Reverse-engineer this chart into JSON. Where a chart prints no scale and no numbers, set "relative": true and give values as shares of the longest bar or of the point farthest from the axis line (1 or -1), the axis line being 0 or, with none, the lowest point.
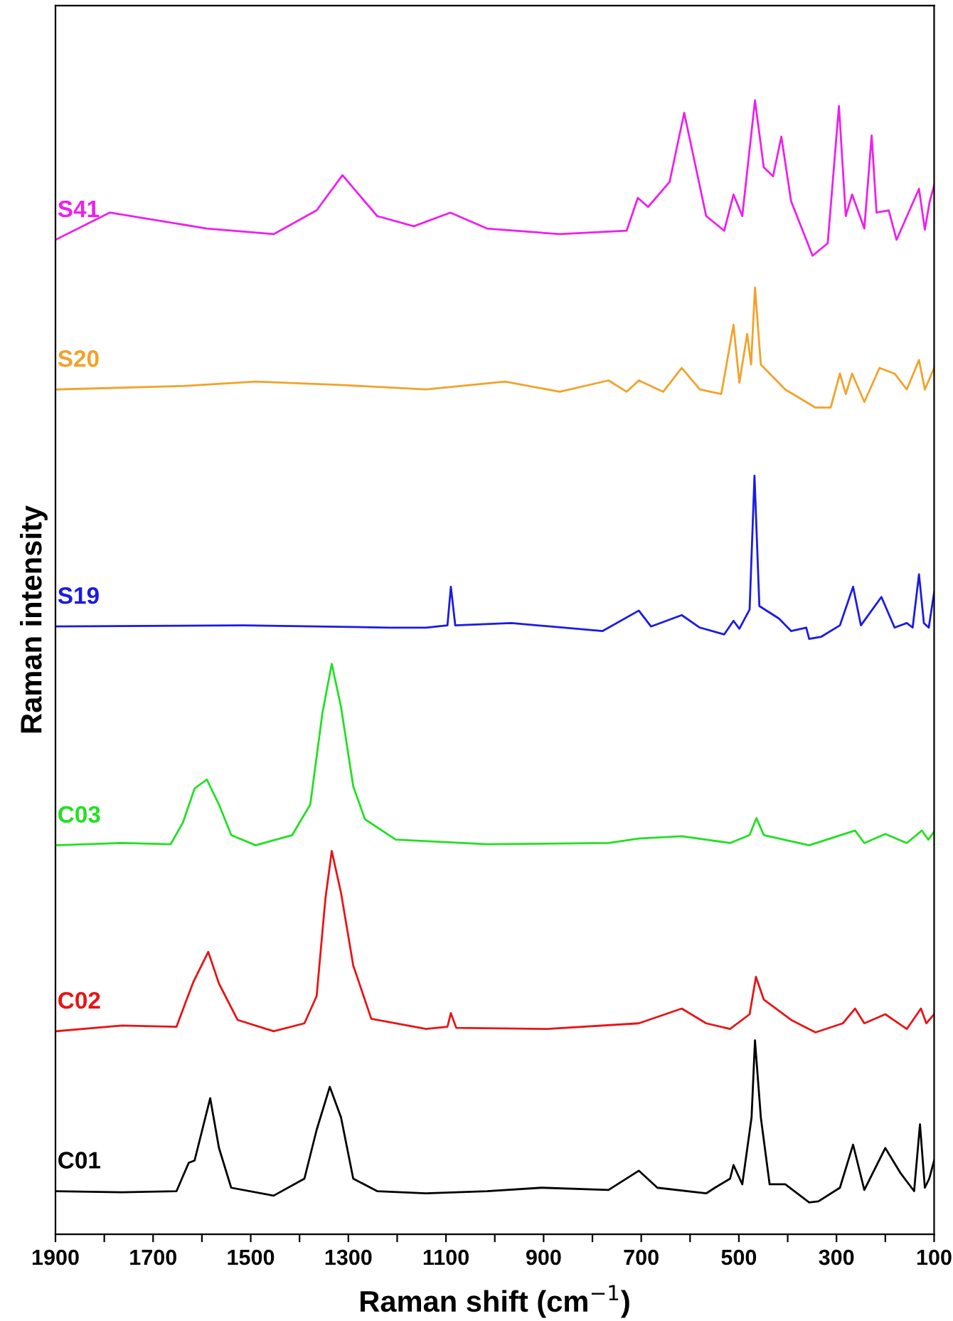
{
  "chart_data": {
    "type": "line",
    "xlabel": "Raman shift (cm$^{−1}$)",
    "ylabel": "Raman intensity",
    "relative": true,
    "xlim": [
      1900,
      100
    ],
    "xticks": [
      1900,
      {
        "value": 1800,
        "label": null
      },
      1700,
      {
        "value": 1600,
        "label": null
      },
      1500,
      {
        "value": 1400,
        "label": null
      },
      1300,
      {
        "value": 1200,
        "label": null
      },
      1100,
      {
        "value": 1000,
        "label": null
      },
      900,
      {
        "value": 800,
        "label": null
      },
      700,
      {
        "value": 600,
        "label": null
      },
      500,
      {
        "value": 400,
        "label": null
      },
      300,
      {
        "value": 200,
        "label": null
      },
      100
    ],
    "grid": false,
    "legend": false,
    "marker": "none",
    "line_style": "solid",
    "series": [
      {
        "name": "S41",
        "color": "#ee1fee",
        "x": [
          1900,
          1789,
          1590,
          1453,
          1365,
          1312,
          1241,
          1166,
          1091,
          1016,
          867,
          730,
          707,
          686,
          642,
          612,
          567,
          530,
          511,
          493,
          467,
          449,
          430,
          413,
          393,
          349,
          318,
          295,
          281,
          268,
          243,
          228,
          218,
          193,
          177,
          131,
          119,
          109,
          100
        ],
        "values": [
          0.877,
          0.901,
          0.887,
          0.882,
          0.903,
          0.934,
          0.898,
          0.889,
          0.901,
          0.887,
          0.882,
          0.885,
          0.914,
          0.906,
          0.928,
          0.989,
          0.898,
          0.885,
          0.917,
          0.898,
          1.0,
          0.941,
          0.933,
          0.968,
          0.911,
          0.863,
          0.874,
          0.995,
          0.898,
          0.917,
          0.887,
          0.969,
          0.901,
          0.903,
          0.877,
          0.922,
          0.886,
          0.911,
          0.925
        ]
      },
      {
        "name": "S20",
        "color": "#f2a22a",
        "x": [
          1900,
          1639,
          1490,
          1315,
          1141,
          979,
          867,
          767,
          730,
          705,
          655,
          617,
          580,
          536,
          511,
          499,
          483,
          475,
          467,
          455,
          405,
          343,
          312,
          293,
          281,
          268,
          243,
          212,
          181,
          156,
          131,
          119,
          100
        ],
        "values": [
          0.745,
          0.748,
          0.752,
          0.749,
          0.745,
          0.752,
          0.743,
          0.753,
          0.743,
          0.753,
          0.743,
          0.764,
          0.745,
          0.741,
          0.802,
          0.751,
          0.794,
          0.767,
          0.835,
          0.767,
          0.745,
          0.729,
          0.729,
          0.759,
          0.741,
          0.759,
          0.734,
          0.764,
          0.759,
          0.745,
          0.771,
          0.745,
          0.764
        ]
      },
      {
        "name": "S19",
        "color": "#1a1ae6",
        "x": [
          1900,
          1515,
          1216,
          1141,
          1097,
          1090,
          1081,
          966,
          779,
          705,
          680,
          617,
          580,
          530,
          511,
          499,
          478,
          468,
          458,
          418,
          393,
          362,
          356,
          331,
          293,
          266,
          250,
          208,
          181,
          156,
          144,
          131,
          121,
          111,
          100
        ],
        "values": [
          0.536,
          0.537,
          0.535,
          0.535,
          0.537,
          0.571,
          0.537,
          0.539,
          0.532,
          0.55,
          0.536,
          0.546,
          0.535,
          0.529,
          0.541,
          0.534,
          0.551,
          0.669,
          0.554,
          0.543,
          0.532,
          0.535,
          0.525,
          0.527,
          0.537,
          0.571,
          0.537,
          0.562,
          0.535,
          0.539,
          0.535,
          0.582,
          0.539,
          0.535,
          0.566
        ]
      },
      {
        "name": "C03",
        "color": "#22e022",
        "x": [
          1900,
          1764,
          1664,
          1639,
          1615,
          1590,
          1565,
          1540,
          1490,
          1415,
          1378,
          1353,
          1334,
          1315,
          1290,
          1266,
          1203,
          1016,
          767,
          705,
          617,
          518,
          478,
          464,
          449,
          356,
          262,
          243,
          200,
          156,
          125,
          112,
          100
        ],
        "values": [
          0.343,
          0.345,
          0.344,
          0.363,
          0.393,
          0.401,
          0.379,
          0.352,
          0.343,
          0.352,
          0.379,
          0.46,
          0.503,
          0.465,
          0.395,
          0.366,
          0.348,
          0.344,
          0.345,
          0.349,
          0.351,
          0.345,
          0.352,
          0.367,
          0.352,
          0.343,
          0.356,
          0.345,
          0.353,
          0.345,
          0.356,
          0.348,
          0.355
        ]
      },
      {
        "name": "C02",
        "color": "#e81414",
        "x": [
          1900,
          1764,
          1652,
          1633,
          1617,
          1587,
          1565,
          1527,
          1453,
          1390,
          1365,
          1347,
          1334,
          1315,
          1290,
          1253,
          1141,
          1097,
          1090,
          1079,
          892,
          705,
          617,
          567,
          518,
          478,
          465,
          449,
          393,
          343,
          287,
          262,
          243,
          200,
          156,
          127,
          116,
          100
        ],
        "values": [
          0.179,
          0.184,
          0.183,
          0.205,
          0.223,
          0.249,
          0.221,
          0.189,
          0.179,
          0.186,
          0.21,
          0.296,
          0.338,
          0.301,
          0.237,
          0.19,
          0.181,
          0.183,
          0.195,
          0.182,
          0.181,
          0.186,
          0.199,
          0.186,
          0.181,
          0.194,
          0.227,
          0.207,
          0.189,
          0.178,
          0.186,
          0.199,
          0.186,
          0.194,
          0.181,
          0.199,
          0.186,
          0.194
        ]
      },
      {
        "name": "C01",
        "color": "#000000",
        "x": [
          1900,
          1764,
          1652,
          1627,
          1615,
          1583,
          1565,
          1540,
          1453,
          1390,
          1365,
          1338,
          1315,
          1290,
          1241,
          1141,
          1016,
          904,
          767,
          705,
          667,
          567,
          549,
          518,
          511,
          493,
          474,
          467,
          455,
          437,
          405,
          356,
          337,
          293,
          266,
          243,
          200,
          169,
          141,
          129,
          119,
          110,
          100
        ],
        "values": [
          0.038,
          0.037,
          0.038,
          0.063,
          0.065,
          0.12,
          0.076,
          0.041,
          0.034,
          0.049,
          0.092,
          0.13,
          0.103,
          0.049,
          0.038,
          0.036,
          0.038,
          0.041,
          0.039,
          0.056,
          0.041,
          0.036,
          0.041,
          0.049,
          0.061,
          0.044,
          0.103,
          0.171,
          0.103,
          0.044,
          0.044,
          0.028,
          0.029,
          0.041,
          0.079,
          0.039,
          0.076,
          0.054,
          0.038,
          0.097,
          0.041,
          0.049,
          0.065
        ]
      }
    ]
  }
}
